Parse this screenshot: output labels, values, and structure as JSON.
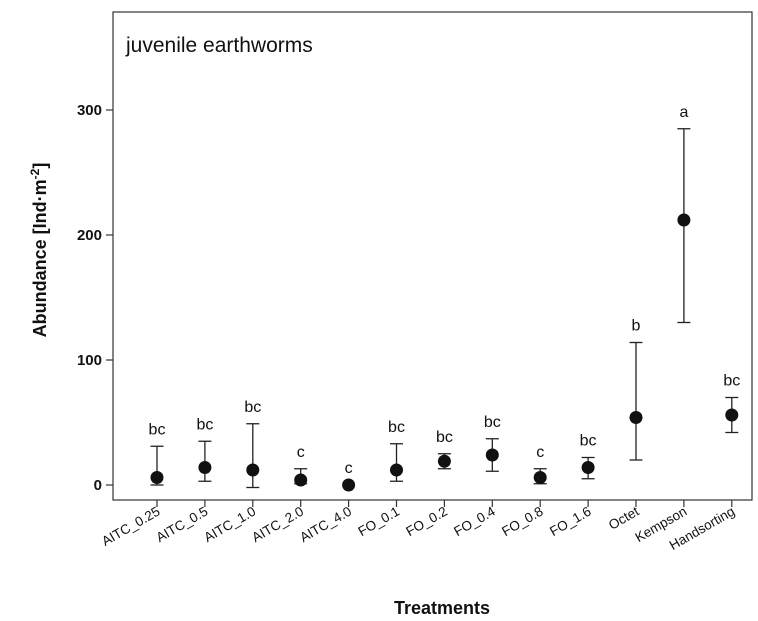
{
  "chart_data": {
    "type": "scatter",
    "title": "juvenile earthworms",
    "xlabel": "Treatments",
    "ylabel_main": "Abundance [Ind",
    "ylabel_unit": "m",
    "ylabel_exp": "-2",
    "ylabel_close": "]",
    "ylim": [
      -10,
      380
    ],
    "yticks": [
      0,
      100,
      200,
      300
    ],
    "grid": false,
    "categories": [
      "AITC_0.25",
      "AITC_0.5",
      "AITC_1.0",
      "AITC_2.0",
      "AITC_4.0",
      "FO_0.1",
      "FO_0.2",
      "FO_0.4",
      "FO_0.8",
      "FO_1.6",
      "Octet",
      "Kempson",
      "Handsorting"
    ],
    "series": [
      {
        "values": [
          6,
          14,
          12,
          4,
          0,
          12,
          19,
          24,
          6,
          14,
          54,
          212,
          56
        ],
        "err_low": [
          0,
          3,
          -2,
          1,
          0,
          3,
          13,
          11,
          1,
          5,
          20,
          130,
          42
        ],
        "err_high": [
          31,
          35,
          49,
          13,
          0,
          33,
          25,
          37,
          13,
          22,
          114,
          285,
          70
        ],
        "significance": [
          "bc",
          "bc",
          "bc",
          "c",
          "c",
          "bc",
          "bc",
          "bc",
          "c",
          "bc",
          "b",
          "a",
          "bc"
        ]
      }
    ]
  }
}
